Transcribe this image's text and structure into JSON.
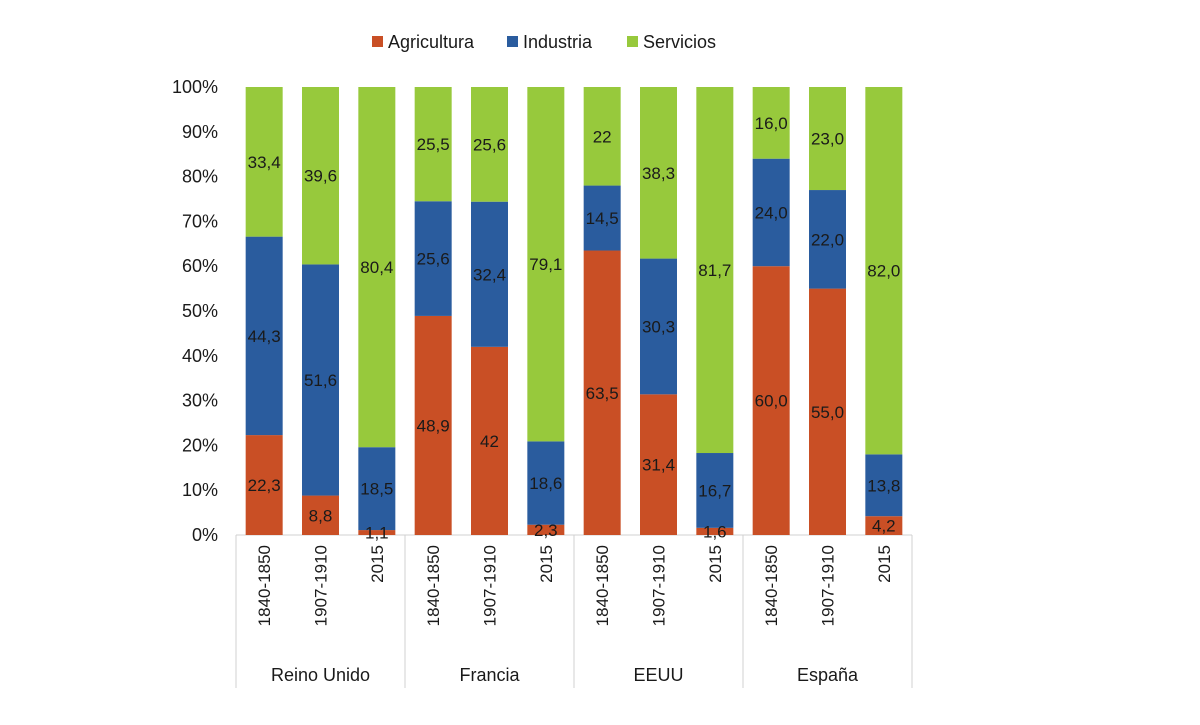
{
  "chart_data": {
    "type": "bar",
    "stacked": true,
    "normalized_percent": true,
    "ylim": [
      0,
      100
    ],
    "y_ticks": [
      "0%",
      "10%",
      "20%",
      "30%",
      "40%",
      "50%",
      "60%",
      "70%",
      "80%",
      "90%",
      "100%"
    ],
    "grid": false,
    "legend_position": "top",
    "legend": [
      {
        "name": "Agricultura",
        "color": "#c94f25"
      },
      {
        "name": "Industria",
        "color": "#2a5c9e"
      },
      {
        "name": "Servicios",
        "color": "#97c93c"
      }
    ],
    "groups": [
      {
        "name": "Reino Unido",
        "categories": [
          "1840-1850",
          "1907-1910",
          "2015"
        ]
      },
      {
        "name": "Francia",
        "categories": [
          "1840-1850",
          "1907-1910",
          "2015"
        ]
      },
      {
        "name": "EEUU",
        "categories": [
          "1840-1850",
          "1907-1910",
          "2015"
        ]
      },
      {
        "name": "España",
        "categories": [
          "1840-1850",
          "1907-1910",
          "2015"
        ]
      }
    ],
    "series": [
      {
        "name": "Agricultura",
        "color": "#c94f25",
        "values": [
          22.3,
          8.8,
          1.1,
          48.9,
          42,
          2.3,
          63.5,
          31.4,
          1.6,
          60.0,
          55.0,
          4.2
        ],
        "labels": [
          "22,3",
          "8,8",
          "1,1",
          "48,9",
          "42",
          "2,3",
          "63,5",
          "31,4",
          "1,6",
          "60,0",
          "55,0",
          "4,2"
        ]
      },
      {
        "name": "Industria",
        "color": "#2a5c9e",
        "values": [
          44.3,
          51.6,
          18.5,
          25.6,
          32.4,
          18.6,
          14.5,
          30.3,
          16.7,
          24.0,
          22.0,
          13.8
        ],
        "labels": [
          "44,3",
          "51,6",
          "18,5",
          "25,6",
          "32,4",
          "18,6",
          "14,5",
          "30,3",
          "16,7",
          "24,0",
          "22,0",
          "13,8"
        ]
      },
      {
        "name": "Servicios",
        "color": "#97c93c",
        "values": [
          33.4,
          39.6,
          80.4,
          25.5,
          25.6,
          79.1,
          22,
          38.3,
          81.7,
          16.0,
          23.0,
          82.0
        ],
        "labels": [
          "33,4",
          "39,6",
          "80,4",
          "25,5",
          "25,6",
          "79,1",
          "22",
          "38,3",
          "81,7",
          "16,0",
          "23,0",
          "82,0"
        ]
      }
    ]
  }
}
